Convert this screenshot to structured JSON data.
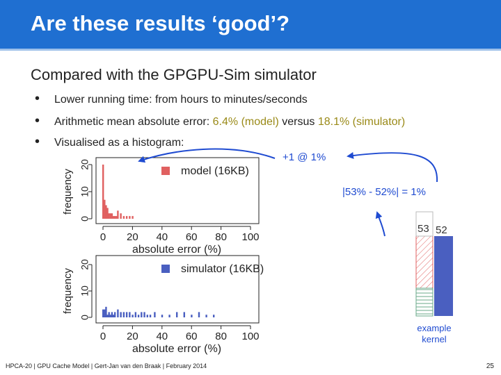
{
  "header": {
    "title": "Are these results ‘good’?"
  },
  "subtitle": "Compared with the GPGPU-Sim simulator",
  "bullets": [
    {
      "text": "Lower running time: from hours to minutes/seconds"
    },
    {
      "pre": "Arithmetic mean absolute error: ",
      "v1": "6.4% (model)",
      "mid": " versus ",
      "v2": "18.1% (simulator)"
    },
    {
      "text": "Visualised as a histogram:"
    }
  ],
  "annotations": {
    "plus_one": "+1 @ 1%",
    "abs_diff": "|53% - 52%| = 1%",
    "kernel_label_line1": "example",
    "kernel_label_line2": "kernel",
    "bar_val_model": "53",
    "bar_val_sim": "52"
  },
  "colors": {
    "header": "#1f6fd1",
    "model": "#e06060",
    "simulator": "#4a5fc0",
    "annotation": "#1f4bd1",
    "highlight": "#9a8a18"
  },
  "footer": "HPCA-20 | GPU Cache Model | Gert-Jan van den Braak | February 2014",
  "page_number": "25",
  "chart_data": [
    {
      "type": "bar",
      "legend": "model (16KB)",
      "xlabel": "absolute error (%)",
      "ylabel": "frequency",
      "xlim": [
        0,
        100
      ],
      "ylim": [
        0,
        20
      ],
      "xticks": [
        "0",
        "20",
        "40",
        "60",
        "80",
        "100"
      ],
      "yticks": [
        "0",
        "10",
        "20"
      ],
      "x": [
        0,
        1,
        2,
        3,
        4,
        5,
        6,
        7,
        8,
        9,
        10,
        12,
        14,
        16,
        18,
        20
      ],
      "values": [
        20,
        7,
        5,
        4,
        2,
        2,
        2,
        1,
        1,
        1,
        3,
        2,
        1,
        1,
        1,
        1
      ]
    },
    {
      "type": "bar",
      "legend": "simulator (16KB)",
      "xlabel": "absolute error (%)",
      "ylabel": "frequency",
      "xlim": [
        0,
        100
      ],
      "ylim": [
        0,
        20
      ],
      "xticks": [
        "0",
        "20",
        "40",
        "60",
        "80",
        "100"
      ],
      "yticks": [
        "0",
        "10",
        "20"
      ],
      "x": [
        0,
        1,
        2,
        3,
        4,
        5,
        6,
        7,
        8,
        10,
        12,
        14,
        16,
        18,
        20,
        22,
        24,
        26,
        28,
        30,
        32,
        35,
        40,
        45,
        50,
        55,
        60,
        65,
        70,
        75
      ],
      "values": [
        3,
        3,
        4,
        1,
        2,
        1,
        2,
        1,
        2,
        3,
        2,
        2,
        2,
        2,
        1,
        2,
        1,
        2,
        2,
        1,
        1,
        2,
        1,
        1,
        2,
        2,
        1,
        2,
        1,
        1
      ]
    }
  ]
}
